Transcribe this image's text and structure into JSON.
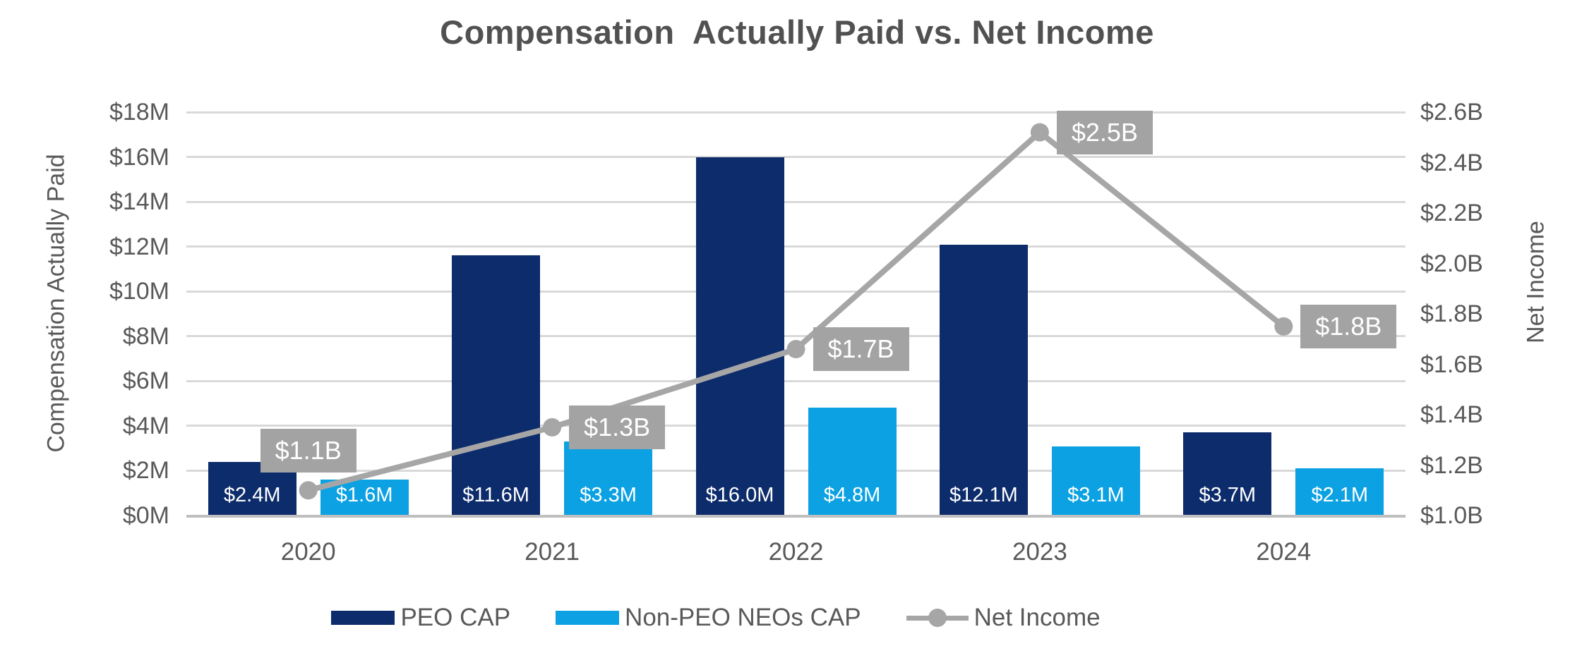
{
  "title": "Compensation  Actually Paid vs. Net Income",
  "chart_data": {
    "type": "combo",
    "categories": [
      "2020",
      "2021",
      "2022",
      "2023",
      "2024"
    ],
    "series": [
      {
        "name": "PEO CAP",
        "type": "bar",
        "axis": "left",
        "color": "#0d2c6b",
        "values": [
          2.4,
          11.6,
          16.0,
          12.1,
          3.7
        ],
        "labels": [
          "$2.4M",
          "$11.6M",
          "$16.0M",
          "$12.1M",
          "$3.7M"
        ]
      },
      {
        "name": "Non-PEO NEOs CAP",
        "type": "bar",
        "axis": "left",
        "color": "#0ba1e2",
        "values": [
          1.6,
          3.3,
          4.8,
          3.1,
          2.1
        ],
        "labels": [
          "$1.6M",
          "$3.3M",
          "$4.8M",
          "$3.1M",
          "$2.1M"
        ]
      },
      {
        "name": "Net Income",
        "type": "line",
        "axis": "right",
        "color": "#a6a6a6",
        "values": [
          1.1,
          1.35,
          1.66,
          2.52,
          1.75
        ],
        "labels": [
          "$1.1B",
          "$1.3B",
          "$1.7B",
          "$2.5B",
          "$1.8B"
        ],
        "label_placement": [
          "above",
          "right",
          "right",
          "right",
          "right"
        ]
      }
    ],
    "left_axis": {
      "title": "Compensation Actually Paid",
      "unit": "$M",
      "min": 0,
      "max": 18,
      "step": 2,
      "ticks": [
        "$0M",
        "$2M",
        "$4M",
        "$6M",
        "$8M",
        "$10M",
        "$12M",
        "$14M",
        "$16M",
        "$18M"
      ]
    },
    "right_axis": {
      "title": "Net Income",
      "unit": "$B",
      "min": 1.0,
      "max": 2.6,
      "step": 0.2,
      "ticks": [
        "$1.0B",
        "$1.2B",
        "$1.4B",
        "$1.6B",
        "$1.8B",
        "$2.0B",
        "$2.2B",
        "$2.4B",
        "$2.6B"
      ]
    },
    "grid": true,
    "legend_position": "bottom"
  }
}
